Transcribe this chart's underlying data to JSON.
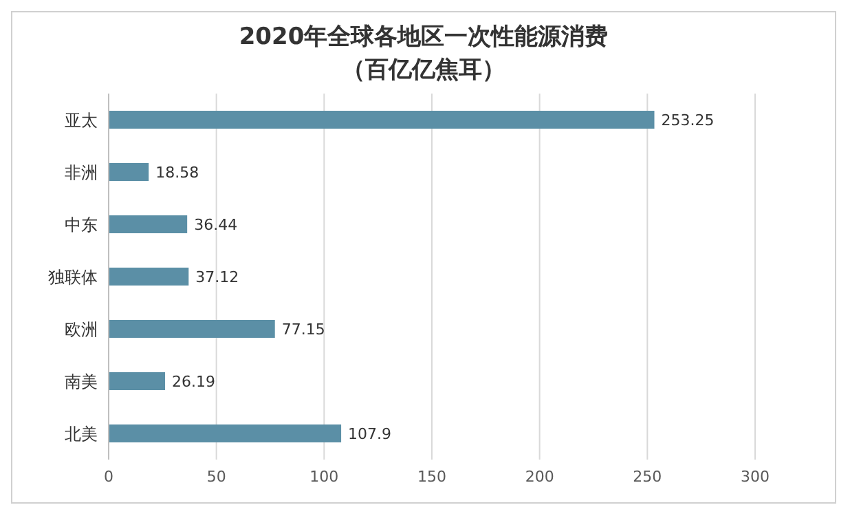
{
  "chart_data": {
    "type": "bar",
    "orientation": "horizontal",
    "title": "2020年全球各地区一次性能源消费",
    "subtitle": "（百亿亿焦耳）",
    "categories": [
      "亚太",
      "非洲",
      "中东",
      "独联体",
      "欧洲",
      "南美",
      "北美"
    ],
    "values": [
      253.25,
      18.58,
      36.44,
      37.12,
      77.15,
      26.19,
      107.9
    ],
    "color": "#5b8fa6",
    "xlim": [
      0,
      300
    ],
    "xticks": [
      0,
      50,
      100,
      150,
      200,
      250,
      300
    ],
    "grid": "x",
    "data_labels": true
  }
}
